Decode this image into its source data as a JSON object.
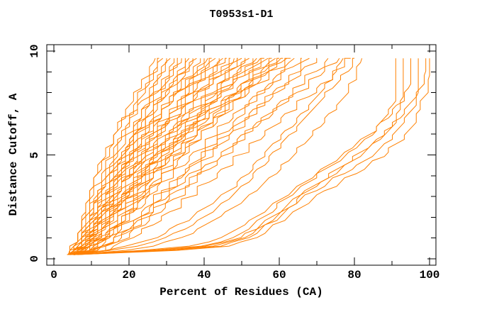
{
  "chart_data": {
    "type": "line",
    "title": "T0953s1-D1",
    "xlabel": "Percent of Residues (CA)",
    "ylabel": "Distance Cutoff, A",
    "xlim": [
      0,
      100
    ],
    "ylim": [
      0,
      10
    ],
    "x_major_ticks": [
      0,
      20,
      40,
      60,
      80,
      100
    ],
    "x_minor_ticks": [
      10,
      30,
      50,
      70,
      90
    ],
    "y_major_ticks": [
      0,
      5,
      10
    ],
    "y_minor_ticks": [
      1,
      2,
      3,
      4,
      6,
      7,
      8,
      9
    ],
    "grid": false,
    "legend": false,
    "background_color": "#ffffff",
    "axis_color": "#000000",
    "line_color": "#ff8000",
    "description": "Family of cumulative model-accuracy curves: percent of CA residues under each distance cutoff, one curve per predicted model",
    "curve_y_start": 0.2,
    "curve_y_top": 9.65,
    "param_curve_format": "[x_at_bottom_pct, x_at_top_pct, early_weight, late_exponent, seed]",
    "param_curves": [
      [
        3.8,
        27,
        0.14,
        1.6,
        1
      ],
      [
        4.6,
        28,
        0.22,
        1.45,
        2
      ],
      [
        3.5,
        29,
        0.18,
        1.7,
        3
      ],
      [
        5.2,
        30,
        0.3,
        1.35,
        4
      ],
      [
        4.1,
        31,
        0.12,
        1.55,
        5
      ],
      [
        5.8,
        32,
        0.26,
        1.5,
        6
      ],
      [
        3.6,
        33,
        0.35,
        1.3,
        7
      ],
      [
        4.9,
        34,
        0.16,
        1.65,
        8
      ],
      [
        5.5,
        35,
        0.28,
        1.4,
        9
      ],
      [
        3.9,
        36,
        0.2,
        1.55,
        10
      ],
      [
        4.4,
        37,
        0.33,
        1.3,
        11
      ],
      [
        5.1,
        38,
        0.15,
        1.7,
        12
      ],
      [
        3.7,
        39,
        0.24,
        1.45,
        13
      ],
      [
        4.8,
        40,
        0.37,
        1.25,
        14
      ],
      [
        5.6,
        41,
        0.19,
        1.6,
        15
      ],
      [
        4.2,
        42,
        0.29,
        1.4,
        16
      ],
      [
        3.5,
        43,
        0.13,
        1.75,
        17
      ],
      [
        5.0,
        44,
        0.26,
        1.5,
        18
      ],
      [
        4.5,
        45,
        0.36,
        1.3,
        19
      ],
      [
        3.8,
        46,
        0.17,
        1.65,
        20
      ],
      [
        5.3,
        47,
        0.31,
        1.35,
        21
      ],
      [
        4.0,
        48,
        0.22,
        1.55,
        22
      ],
      [
        5.7,
        49,
        0.4,
        1.25,
        23
      ],
      [
        3.6,
        50,
        0.15,
        1.7,
        24
      ],
      [
        4.7,
        51,
        0.27,
        1.45,
        25
      ],
      [
        5.2,
        52,
        0.34,
        1.3,
        26
      ],
      [
        3.9,
        53,
        0.19,
        1.6,
        27
      ],
      [
        4.3,
        54,
        0.3,
        1.4,
        28
      ],
      [
        5.5,
        55,
        0.23,
        1.5,
        29
      ],
      [
        3.7,
        56,
        0.38,
        1.25,
        30
      ],
      [
        4.9,
        57,
        0.16,
        1.65,
        31
      ],
      [
        5.1,
        58,
        0.28,
        1.4,
        32
      ],
      [
        4.1,
        59,
        0.35,
        1.3,
        33
      ],
      [
        3.8,
        60,
        0.21,
        1.55,
        34
      ],
      [
        5.4,
        61,
        0.32,
        1.35,
        35
      ],
      [
        4.6,
        62,
        0.18,
        1.6,
        36
      ],
      [
        3.5,
        63,
        0.25,
        1.45,
        37
      ],
      [
        5.0,
        64,
        0.42,
        1.2,
        38
      ],
      [
        4.4,
        66,
        0.33,
        1.35,
        39
      ],
      [
        5.6,
        68,
        0.4,
        1.2,
        40
      ],
      [
        3.9,
        70,
        0.36,
        1.3,
        41
      ],
      [
        4.8,
        73,
        0.44,
        1.18,
        42
      ],
      [
        4.2,
        76,
        0.38,
        1.25,
        43
      ],
      [
        5.3,
        79,
        0.45,
        1.15,
        44
      ]
    ],
    "anchor_y": [
      0.2,
      0.5,
      1,
      2,
      3,
      4,
      5,
      6,
      7,
      8,
      9,
      9.65
    ],
    "anchor_curves": [
      [
        4.5,
        17,
        27,
        37,
        45,
        51,
        56,
        61,
        66,
        71,
        75,
        77
      ],
      [
        5.0,
        20,
        30,
        40,
        47,
        53,
        58,
        63,
        68,
        73,
        78,
        80
      ],
      [
        5.5,
        24,
        34,
        44,
        52,
        58,
        64,
        69,
        74,
        78,
        81,
        82
      ],
      [
        5.0,
        36,
        48,
        56,
        62,
        70,
        78,
        85,
        89,
        91,
        91,
        91
      ],
      [
        5.5,
        40,
        51,
        59,
        66,
        74,
        82,
        88,
        92,
        93,
        93,
        93
      ],
      [
        4.5,
        33,
        45,
        54,
        61,
        69,
        77,
        84,
        90,
        94,
        95,
        95
      ],
      [
        5.0,
        42,
        52,
        60,
        67,
        76,
        85,
        91,
        95,
        97,
        97,
        97
      ],
      [
        6.0,
        38,
        50,
        58,
        65,
        73,
        81,
        88,
        93,
        97,
        99,
        99
      ],
      [
        5.5,
        44,
        54,
        62,
        70,
        79,
        88,
        94,
        97,
        99,
        100,
        100
      ]
    ]
  }
}
